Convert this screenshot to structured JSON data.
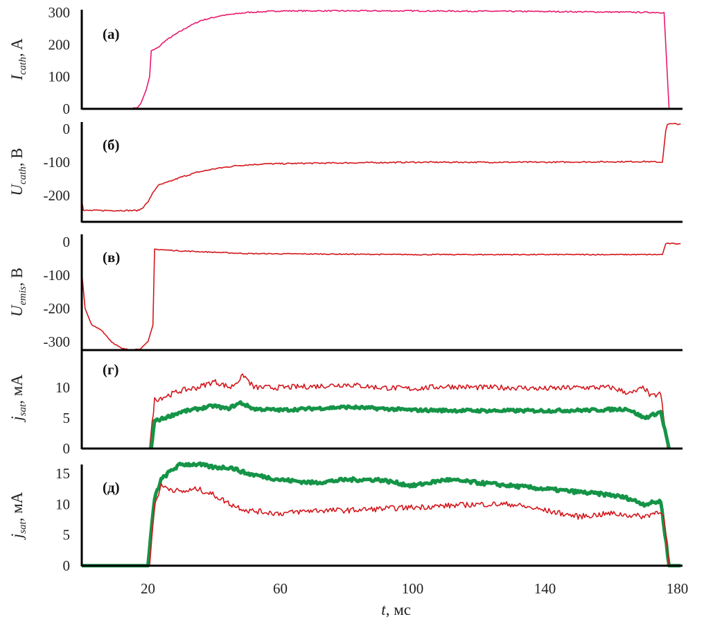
{
  "colors": {
    "pink": "#e8186e",
    "red": "#d4161c",
    "green": "#159447",
    "axis": "#000000"
  },
  "chart_data": [
    {
      "type": "line",
      "panel_label": "(а)",
      "ylabel_main": "I",
      "ylabel_sub": "cath",
      "ylabel_unit": ", A",
      "yticks": [
        "0",
        "100",
        "200",
        "300"
      ],
      "ytick_values": [
        0,
        100,
        200,
        300
      ],
      "ylim": [
        0,
        310
      ],
      "axis_at": "zero",
      "series": [
        {
          "name": "I_cath",
          "color": "pink",
          "noise": 2,
          "x": [
            0,
            15,
            17,
            18,
            19.5,
            20.5,
            21,
            23,
            25,
            28,
            32,
            36,
            42,
            50,
            60,
            100,
            140,
            176,
            177.5
          ],
          "y": [
            0,
            0,
            5,
            20,
            60,
            100,
            180,
            190,
            210,
            230,
            255,
            275,
            290,
            300,
            305,
            305,
            303,
            300,
            0
          ]
        }
      ]
    },
    {
      "type": "line",
      "panel_label": "(б)",
      "ylabel_main": "U",
      "ylabel_sub": "cath",
      "ylabel_unit": ", В",
      "yticks": [
        "-200",
        "-100",
        "0"
      ],
      "ytick_values": [
        -200,
        -100,
        0
      ],
      "ylim": [
        -280,
        20
      ],
      "axis_at": "bottom",
      "series": [
        {
          "name": "U_cath",
          "color": "red",
          "noise": 2,
          "x": [
            0,
            0.5,
            17,
            18,
            20,
            21,
            22,
            23,
            26,
            30,
            35,
            40,
            47,
            55,
            70,
            100,
            140,
            170,
            175.5,
            176.5,
            177,
            181
          ],
          "y": [
            -215,
            -245,
            -245,
            -240,
            -220,
            -200,
            -185,
            -170,
            -160,
            -145,
            -130,
            -120,
            -110,
            -105,
            -103,
            -100,
            -100,
            -98,
            -100,
            -5,
            15,
            15
          ]
        }
      ]
    },
    {
      "type": "line",
      "panel_label": "(в)",
      "ylabel_main": "U",
      "ylabel_sub": "emis",
      "ylabel_unit": ", В",
      "yticks": [
        "-300",
        "-200",
        "-100",
        "0"
      ],
      "ytick_values": [
        -300,
        -200,
        -100,
        0
      ],
      "ylim": [
        -325,
        10
      ],
      "axis_at": "bottom",
      "series": [
        {
          "name": "U_emis",
          "color": "red",
          "noise": 1.5,
          "x": [
            0,
            1,
            3,
            6,
            9,
            12,
            15,
            18,
            20,
            21.5,
            22,
            30,
            50,
            100,
            175.5,
            176.5,
            181
          ],
          "y": [
            -90,
            -200,
            -250,
            -265,
            -300,
            -320,
            -325,
            -320,
            -300,
            -250,
            -22,
            -27,
            -35,
            -38,
            -38,
            -5,
            -5
          ]
        }
      ]
    },
    {
      "type": "line",
      "panel_label": "(г)",
      "ylabel_main": "j",
      "ylabel_sub": "sat",
      "ylabel_unit": ", мА",
      "yticks": [
        "0",
        "5",
        "10"
      ],
      "ytick_values": [
        0,
        5,
        10
      ],
      "ylim": [
        0,
        13
      ],
      "axis_at": "zero",
      "series": [
        {
          "name": "red",
          "color": "red",
          "noise": 0.45,
          "x": [
            20.5,
            22,
            25,
            30,
            35,
            40,
            45,
            49,
            52,
            60,
            70,
            80,
            90,
            100,
            110,
            120,
            130,
            140,
            150,
            160,
            166,
            170,
            172,
            175,
            177
          ],
          "y": [
            0,
            8,
            8.5,
            9.5,
            10,
            11,
            10,
            12,
            10,
            10,
            10.2,
            10.5,
            10,
            9.8,
            10.2,
            10,
            10,
            9.8,
            10,
            10,
            9,
            10,
            8.5,
            9,
            0
          ]
        },
        {
          "name": "green",
          "color": "green",
          "noise": 0.25,
          "thick": true,
          "x": [
            21,
            22,
            25,
            30,
            35,
            40,
            44,
            48,
            52,
            60,
            80,
            100,
            120,
            140,
            155,
            165,
            170,
            175,
            177.5
          ],
          "y": [
            0,
            4.5,
            5,
            6,
            6.5,
            7,
            6.5,
            7.5,
            6.5,
            6.3,
            6.8,
            6.3,
            6.2,
            6.2,
            6.3,
            6.5,
            5,
            6,
            0
          ]
        }
      ]
    },
    {
      "type": "line",
      "panel_label": "(д)",
      "ylabel_main": "j",
      "ylabel_sub": "sat",
      "ylabel_unit": ", мА",
      "yticks": [
        "0",
        "5",
        "10",
        "15"
      ],
      "ytick_values": [
        0,
        5,
        10,
        15
      ],
      "ylim": [
        0,
        17
      ],
      "axis_at": "zero",
      "xticks": [
        "20",
        "60",
        "100",
        "140",
        "180"
      ],
      "xtick_values": [
        20,
        60,
        100,
        140,
        180
      ],
      "xlabel_main": "t",
      "xlabel_unit": ", мс",
      "xlim": [
        0,
        181
      ],
      "series": [
        {
          "name": "green",
          "color": "green",
          "noise": 0.3,
          "thick": true,
          "x": [
            0,
            20,
            22,
            24,
            27,
            30,
            35,
            40,
            45,
            50,
            60,
            70,
            80,
            90,
            100,
            110,
            120,
            130,
            140,
            150,
            160,
            165,
            170,
            175,
            177.5,
            181
          ],
          "y": [
            0,
            0,
            11,
            14,
            15.5,
            16.5,
            16.5,
            16,
            16,
            15,
            14,
            13.5,
            14,
            14,
            13,
            14,
            13.5,
            13,
            12.5,
            12,
            11.5,
            11,
            10,
            10.5,
            0,
            0
          ]
        },
        {
          "name": "red",
          "color": "red",
          "noise": 0.45,
          "x": [
            0,
            20.5,
            22,
            24,
            30,
            35,
            40,
            45,
            50,
            60,
            70,
            80,
            100,
            120,
            130,
            140,
            150,
            160,
            170,
            175,
            176,
            177.5,
            181
          ],
          "y": [
            0,
            0,
            10,
            13,
            12,
            12.5,
            11.5,
            10,
            9,
            8.5,
            9,
            9,
            9.5,
            10,
            10,
            9,
            8,
            8.5,
            8,
            9,
            7.5,
            0,
            0
          ]
        }
      ]
    }
  ]
}
